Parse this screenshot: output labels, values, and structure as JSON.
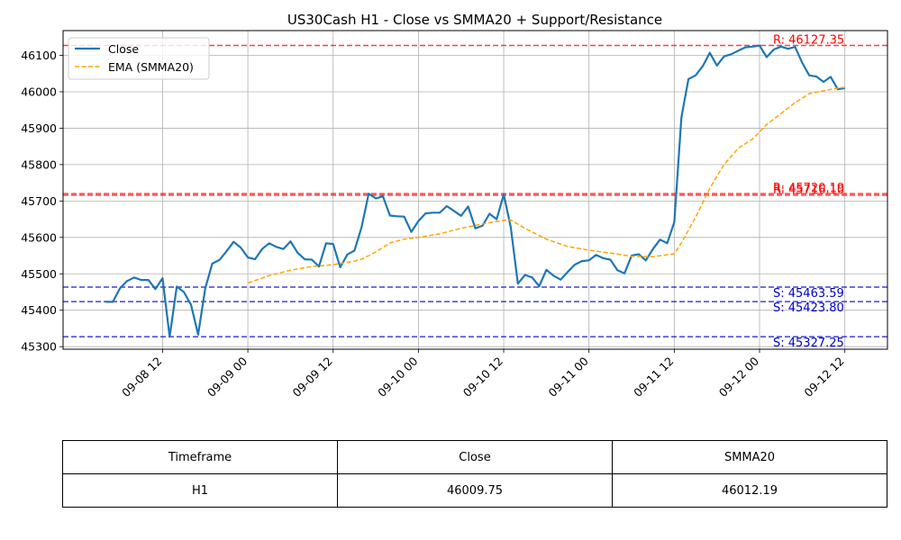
{
  "chart_data": {
    "type": "line",
    "title": "US30Cash H1 - Close vs SMMA20 + Support/Resistance",
    "xlabel": "",
    "ylabel": "",
    "ylim": [
      45293,
      46168
    ],
    "grid": true,
    "legend_position": "top-left",
    "x_range": [
      "2025-09-07 22:00",
      "2025-09-12 18:00"
    ],
    "x_ticks": [
      {
        "t": "2025-09-08 12:00",
        "label": "09-08 12"
      },
      {
        "t": "2025-09-09 00:00",
        "label": "09-09 00"
      },
      {
        "t": "2025-09-09 12:00",
        "label": "09-09 12"
      },
      {
        "t": "2025-09-10 00:00",
        "label": "09-10 00"
      },
      {
        "t": "2025-09-10 12:00",
        "label": "09-10 12"
      },
      {
        "t": "2025-09-11 00:00",
        "label": "09-11 00"
      },
      {
        "t": "2025-09-11 12:00",
        "label": "09-11 12"
      },
      {
        "t": "2025-09-12 00:00",
        "label": "09-12 00"
      },
      {
        "t": "2025-09-12 12:00",
        "label": "09-12 12"
      }
    ],
    "y_ticks": [
      45300,
      45400,
      45500,
      45600,
      45700,
      45800,
      45900,
      46000,
      46100
    ],
    "series": [
      {
        "name": "Close",
        "color": "#1f77b4",
        "style": "solid",
        "points": [
          [
            "2025-09-08 04:00",
            45423
          ],
          [
            "2025-09-08 05:00",
            45423
          ],
          [
            "2025-09-08 06:00",
            45460
          ],
          [
            "2025-09-08 07:00",
            45480
          ],
          [
            "2025-09-08 08:00",
            45490
          ],
          [
            "2025-09-08 09:00",
            45483
          ],
          [
            "2025-09-08 10:00",
            45483
          ],
          [
            "2025-09-08 11:00",
            45458
          ],
          [
            "2025-09-08 12:00",
            45488
          ],
          [
            "2025-09-08 13:00",
            45327
          ],
          [
            "2025-09-08 14:00",
            45465
          ],
          [
            "2025-09-08 15:00",
            45450
          ],
          [
            "2025-09-08 16:00",
            45415
          ],
          [
            "2025-09-08 17:00",
            45333
          ],
          [
            "2025-09-08 18:00",
            45460
          ],
          [
            "2025-09-08 19:00",
            45528
          ],
          [
            "2025-09-08 20:00",
            45538
          ],
          [
            "2025-09-08 21:00",
            45562
          ],
          [
            "2025-09-08 22:00",
            45588
          ],
          [
            "2025-09-08 23:00",
            45572
          ],
          [
            "2025-09-09 00:00",
            45545
          ],
          [
            "2025-09-09 01:00",
            45540
          ],
          [
            "2025-09-09 02:00",
            45568
          ],
          [
            "2025-09-09 03:00",
            45584
          ],
          [
            "2025-09-09 04:00",
            45574
          ],
          [
            "2025-09-09 05:00",
            45568
          ],
          [
            "2025-09-09 06:00",
            45589
          ],
          [
            "2025-09-09 07:00",
            45558
          ],
          [
            "2025-09-09 08:00",
            45540
          ],
          [
            "2025-09-09 09:00",
            45539
          ],
          [
            "2025-09-09 10:00",
            45520
          ],
          [
            "2025-09-09 11:00",
            45584
          ],
          [
            "2025-09-09 12:00",
            45582
          ],
          [
            "2025-09-09 13:00",
            45518
          ],
          [
            "2025-09-09 14:00",
            45553
          ],
          [
            "2025-09-09 15:00",
            45564
          ],
          [
            "2025-09-09 16:00",
            45628
          ],
          [
            "2025-09-09 17:00",
            45720
          ],
          [
            "2025-09-09 18:00",
            45707
          ],
          [
            "2025-09-09 19:00",
            45713
          ],
          [
            "2025-09-09 20:00",
            45660
          ],
          [
            "2025-09-09 21:00",
            45658
          ],
          [
            "2025-09-09 22:00",
            45657
          ],
          [
            "2025-09-09 23:00",
            45615
          ],
          [
            "2025-09-10 00:00",
            45645
          ],
          [
            "2025-09-10 01:00",
            45666
          ],
          [
            "2025-09-10 02:00",
            45668
          ],
          [
            "2025-09-10 03:00",
            45668
          ],
          [
            "2025-09-10 04:00",
            45686
          ],
          [
            "2025-09-10 05:00",
            45673
          ],
          [
            "2025-09-10 06:00",
            45659
          ],
          [
            "2025-09-10 07:00",
            45685
          ],
          [
            "2025-09-10 08:00",
            45625
          ],
          [
            "2025-09-10 09:00",
            45632
          ],
          [
            "2025-09-10 10:00",
            45665
          ],
          [
            "2025-09-10 11:00",
            45650
          ],
          [
            "2025-09-10 12:00",
            45718
          ],
          [
            "2025-09-10 13:00",
            45628
          ],
          [
            "2025-09-10 14:00",
            45473
          ],
          [
            "2025-09-10 15:00",
            45497
          ],
          [
            "2025-09-10 16:00",
            45490
          ],
          [
            "2025-09-10 17:00",
            45466
          ],
          [
            "2025-09-10 18:00",
            45511
          ],
          [
            "2025-09-10 19:00",
            45495
          ],
          [
            "2025-09-10 20:00",
            45484
          ],
          [
            "2025-09-10 21:00",
            45505
          ],
          [
            "2025-09-10 22:00",
            45525
          ],
          [
            "2025-09-10 23:00",
            45535
          ],
          [
            "2025-09-11 00:00",
            45537
          ],
          [
            "2025-09-11 01:00",
            45552
          ],
          [
            "2025-09-11 02:00",
            45543
          ],
          [
            "2025-09-11 03:00",
            45539
          ],
          [
            "2025-09-11 04:00",
            45510
          ],
          [
            "2025-09-11 05:00",
            45501
          ],
          [
            "2025-09-11 06:00",
            45550
          ],
          [
            "2025-09-11 07:00",
            45554
          ],
          [
            "2025-09-11 08:00",
            45537
          ],
          [
            "2025-09-11 09:00",
            45568
          ],
          [
            "2025-09-11 10:00",
            45594
          ],
          [
            "2025-09-11 11:00",
            45584
          ],
          [
            "2025-09-11 12:00",
            45642
          ],
          [
            "2025-09-11 13:00",
            45930
          ],
          [
            "2025-09-11 14:00",
            46035
          ],
          [
            "2025-09-11 15:00",
            46045
          ],
          [
            "2025-09-11 16:00",
            46070
          ],
          [
            "2025-09-11 17:00",
            46107
          ],
          [
            "2025-09-11 18:00",
            46072
          ],
          [
            "2025-09-11 19:00",
            46097
          ],
          [
            "2025-09-11 20:00",
            46103
          ],
          [
            "2025-09-11 21:00",
            46113
          ],
          [
            "2025-09-11 22:00",
            46122
          ],
          [
            "2025-09-11 23:00",
            46124
          ],
          [
            "2025-09-12 00:00",
            46127
          ],
          [
            "2025-09-12 01:00",
            46095
          ],
          [
            "2025-09-12 02:00",
            46116
          ],
          [
            "2025-09-12 03:00",
            46124
          ],
          [
            "2025-09-12 04:00",
            46118
          ],
          [
            "2025-09-12 05:00",
            46123
          ],
          [
            "2025-09-12 06:00",
            46080
          ],
          [
            "2025-09-12 07:00",
            46045
          ],
          [
            "2025-09-12 08:00",
            46042
          ],
          [
            "2025-09-12 09:00",
            46027
          ],
          [
            "2025-09-12 10:00",
            46041
          ],
          [
            "2025-09-12 11:00",
            46007
          ],
          [
            "2025-09-12 12:00",
            46010
          ]
        ]
      },
      {
        "name": "EMA (SMMA20)",
        "color": "#ffa500",
        "style": "dashed",
        "points": [
          [
            "2025-09-09 00:00",
            45475
          ],
          [
            "2025-09-09 03:00",
            45495
          ],
          [
            "2025-09-09 06:00",
            45510
          ],
          [
            "2025-09-09 09:00",
            45520
          ],
          [
            "2025-09-09 12:00",
            45525
          ],
          [
            "2025-09-09 15:00",
            45535
          ],
          [
            "2025-09-09 16:00",
            45540
          ],
          [
            "2025-09-09 18:00",
            45560
          ],
          [
            "2025-09-09 20:00",
            45585
          ],
          [
            "2025-09-09 22:00",
            45595
          ],
          [
            "2025-09-10 00:00",
            45600
          ],
          [
            "2025-09-10 03:00",
            45610
          ],
          [
            "2025-09-10 06:00",
            45625
          ],
          [
            "2025-09-10 09:00",
            45637
          ],
          [
            "2025-09-10 12:00",
            45647
          ],
          [
            "2025-09-10 13:00",
            45648
          ],
          [
            "2025-09-10 15:00",
            45625
          ],
          [
            "2025-09-10 18:00",
            45595
          ],
          [
            "2025-09-10 21:00",
            45575
          ],
          [
            "2025-09-11 00:00",
            45565
          ],
          [
            "2025-09-11 03:00",
            45557
          ],
          [
            "2025-09-11 06:00",
            45548
          ],
          [
            "2025-09-11 09:00",
            45547
          ],
          [
            "2025-09-11 12:00",
            45555
          ],
          [
            "2025-09-11 13:00",
            45585
          ],
          [
            "2025-09-11 15:00",
            45655
          ],
          [
            "2025-09-11 17:00",
            45735
          ],
          [
            "2025-09-11 19:00",
            45800
          ],
          [
            "2025-09-11 21:00",
            45845
          ],
          [
            "2025-09-11 23:00",
            45870
          ],
          [
            "2025-09-12 01:00",
            45910
          ],
          [
            "2025-09-12 03:00",
            45940
          ],
          [
            "2025-09-12 05:00",
            45970
          ],
          [
            "2025-09-12 07:00",
            45995
          ],
          [
            "2025-09-12 09:00",
            46003
          ],
          [
            "2025-09-12 11:00",
            46010
          ],
          [
            "2025-09-12 12:00",
            46012
          ]
        ]
      }
    ],
    "levels": [
      {
        "value": 46127.35,
        "label": "R: 46127.35",
        "kind": "resistance",
        "color": "#ff0000"
      },
      {
        "value": 45720.19,
        "label": "R: 45720.19",
        "kind": "resistance",
        "color": "#ff0000"
      },
      {
        "value": 45716.1,
        "label": "R: 45716.10",
        "kind": "resistance",
        "color": "#ff0000"
      },
      {
        "value": 45463.59,
        "label": "S: 45463.59",
        "kind": "support",
        "color": "#0000cc"
      },
      {
        "value": 45423.8,
        "label": "S: 45423.80",
        "kind": "support",
        "color": "#0000cc"
      },
      {
        "value": 45327.25,
        "label": "S: 45327.25",
        "kind": "support",
        "color": "#0000cc"
      }
    ]
  },
  "table": {
    "headers": [
      "Timeframe",
      "Close",
      "SMMA20"
    ],
    "rows": [
      [
        "H1",
        "46009.75",
        "46012.19"
      ]
    ]
  }
}
